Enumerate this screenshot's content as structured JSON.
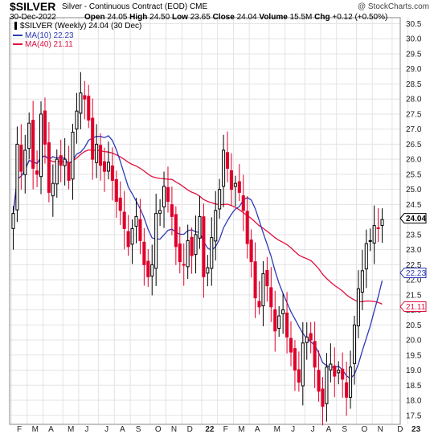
{
  "header": {
    "ticker": "$SILVER",
    "subtitle": "Silver - Continuous Contract (EOD)  CME",
    "credit": "@ StockCharts.com",
    "date": "30-Dec-2022",
    "open_label": "Open",
    "open": "24.05",
    "high_label": "High",
    "high": "24.50",
    "low_label": "Low",
    "low": "23.65",
    "close_label": "Close",
    "close": "24.04",
    "volume_label": "Volume",
    "volume": "15.5M",
    "chg_label": "Chg",
    "chg": "+0.12 (+0.50%)"
  },
  "legend": {
    "main": "$SILVER (Weekly) 24.04 (30 Dec)",
    "ma10": "MA(10) 22.23",
    "ma40": "MA(40) 21.11"
  },
  "colors": {
    "up": "#000000",
    "down": "#e0002a",
    "ma10": "#2d3bb5",
    "ma40": "#e0103f",
    "grid": "#e3e3e3"
  },
  "chart_data": {
    "type": "candlestick",
    "title": "$SILVER Silver - Continuous Contract (EOD) CME",
    "interval": "Weekly",
    "ylim": [
      17.2,
      30.7
    ],
    "y_ticks": [
      17.5,
      18.0,
      18.5,
      19.0,
      19.5,
      20.0,
      20.5,
      21.0,
      21.5,
      22.0,
      22.5,
      23.0,
      23.5,
      24.0,
      24.5,
      25.0,
      25.5,
      26.0,
      26.5,
      27.0,
      27.5,
      28.0,
      28.5,
      29.0,
      29.5,
      30.0,
      30.5
    ],
    "y_tick_labels": [
      "17.5",
      "18.0",
      "18.5",
      "19.0",
      "19.5",
      "20.0",
      "20.5",
      "21.0",
      "21.5",
      "22.0",
      "22.5",
      "23.0",
      "23.5",
      "24.0",
      "24.5",
      "25.0",
      "25.5",
      "26.0",
      "26.5",
      "27.0",
      "27.5",
      "28.0",
      "28.5",
      "29.0",
      "29.5",
      "30.0",
      "30.5"
    ],
    "x_month_labels": [
      "F",
      "M",
      "A",
      "M",
      "J",
      "J",
      "A",
      "S",
      "O",
      "N",
      "D",
      "22",
      "F",
      "M",
      "A",
      "M",
      "J",
      "J",
      "A",
      "S",
      "O",
      "N",
      "D",
      "23"
    ],
    "x_month_week_index": [
      0,
      4,
      8,
      13,
      17,
      22,
      26,
      30,
      35,
      39,
      43,
      48,
      52,
      56,
      60,
      65,
      69,
      74,
      78,
      82,
      87,
      91,
      96,
      100
    ],
    "last_value_labels": {
      "close": "24.04",
      "ma10": "22.23",
      "ma40": "21.11"
    },
    "series": [
      {
        "name": "$SILVER (Weekly)",
        "style": "candlestick",
        "close": [
          24.2,
          26.5,
          25.6,
          26.3,
          27.2,
          25.7,
          25.5,
          27.5,
          26.5,
          24.9,
          25.2,
          26.0,
          25.8,
          26.0,
          25.3,
          26.9,
          27.6,
          28.2,
          28.0,
          27.3,
          26.0,
          26.5,
          25.8,
          25.6,
          25.9,
          25.3,
          24.6,
          24.3,
          23.7,
          23.1,
          23.7,
          24.1,
          23.3,
          22.5,
          22.1,
          22.5,
          24.2,
          24.3,
          25.1,
          24.6,
          24.1,
          23.1,
          22.6,
          22.5,
          23.3,
          22.8,
          23.5,
          24.1,
          22.1,
          22.4,
          23.4,
          24.3,
          25.0,
          26.3,
          25.7,
          25.0,
          25.2,
          24.9,
          24.3,
          23.2,
          22.6,
          21.4,
          21.1,
          22.2,
          21.8,
          21.1,
          20.3,
          20.8,
          21.0,
          20.1,
          19.6,
          19.0,
          18.6,
          19.9,
          20.1,
          20.0,
          19.1,
          18.3,
          17.8,
          19.1,
          19.2,
          18.8,
          19.0,
          18.7,
          18.1,
          19.1,
          20.5,
          21.7,
          22.3,
          23.2,
          23.3,
          23.8,
          23.7,
          24.0
        ]
      }
    ],
    "ma_series": [
      {
        "name": "MA(10)",
        "value": 22.23
      },
      {
        "name": "MA(40)",
        "value": 21.11
      }
    ]
  }
}
